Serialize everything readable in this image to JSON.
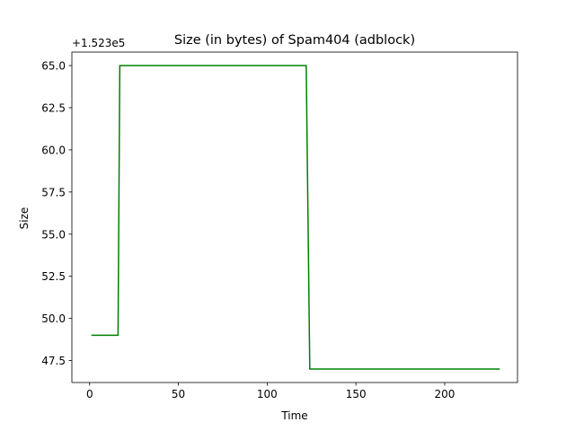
{
  "chart_data": {
    "type": "line",
    "title": "Size (in bytes) of Spam404 (adblock)",
    "xlabel": "Time",
    "ylabel": "Size",
    "offset_label": "+1.523e5",
    "xlim": [
      -10,
      241
    ],
    "ylim": [
      46.2,
      65.8
    ],
    "x_ticks": [
      0,
      50,
      100,
      150,
      200
    ],
    "x_tick_labels": [
      "0",
      "50",
      "100",
      "150",
      "200"
    ],
    "y_ticks": [
      47.5,
      50.0,
      52.5,
      55.0,
      57.5,
      60.0,
      62.5,
      65.0
    ],
    "y_tick_labels": [
      "47.5",
      "50.0",
      "52.5",
      "55.0",
      "57.5",
      "60.0",
      "62.5",
      "65.0"
    ],
    "grid": false,
    "series": [
      {
        "color": "#008000",
        "x": [
          1,
          16,
          17,
          122,
          124,
          231
        ],
        "y": [
          49,
          49,
          65,
          65,
          47,
          47
        ]
      }
    ]
  }
}
